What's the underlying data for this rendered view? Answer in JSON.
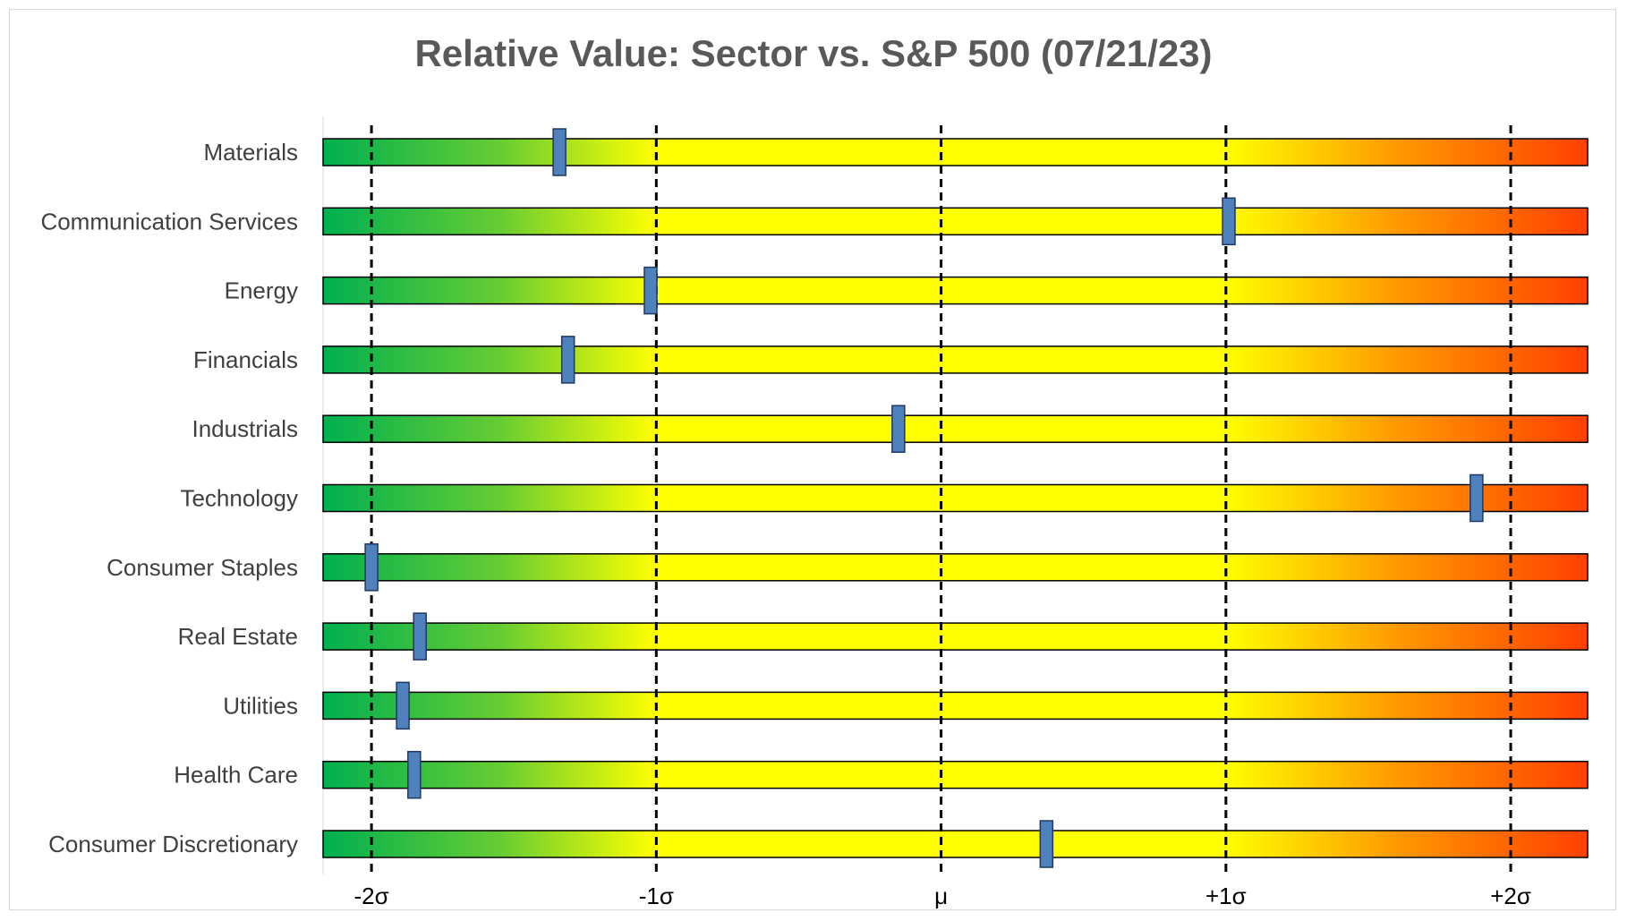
{
  "chart_data": {
    "type": "bar",
    "title": "Relative Value: Sector vs. S&P 500 (07/21/23)",
    "xlabel": "",
    "ylabel": "",
    "xlim": [
      -2.17,
      2.27
    ],
    "categories": [
      "Materials",
      "Communication Services",
      "Energy",
      "Financials",
      "Industrials",
      "Technology",
      "Consumer Staples",
      "Real Estate",
      "Utilities",
      "Health Care",
      "Consumer Discretionary"
    ],
    "values": [
      -1.34,
      1.01,
      -1.02,
      -1.31,
      -0.15,
      1.88,
      -2.0,
      -1.83,
      -1.89,
      -1.85,
      0.37
    ],
    "ticks": [
      {
        "value": -2,
        "label": "-2σ"
      },
      {
        "value": -1,
        "label": "-1σ"
      },
      {
        "value": 0,
        "label": "μ"
      },
      {
        "value": 1,
        "label": "+1σ"
      },
      {
        "value": 2,
        "label": "+2σ"
      }
    ],
    "gradient_stops": [
      {
        "value": -2.17,
        "color": "#00b050"
      },
      {
        "value": -1.55,
        "color": "#66cc33"
      },
      {
        "value": -1.0,
        "color": "#ffff00"
      },
      {
        "value": 1.0,
        "color": "#ffff00"
      },
      {
        "value": 1.6,
        "color": "#ff9900"
      },
      {
        "value": 2.27,
        "color": "#ff4000"
      }
    ],
    "marker_color": "#4f81bd",
    "grid": false,
    "legend": "none"
  }
}
